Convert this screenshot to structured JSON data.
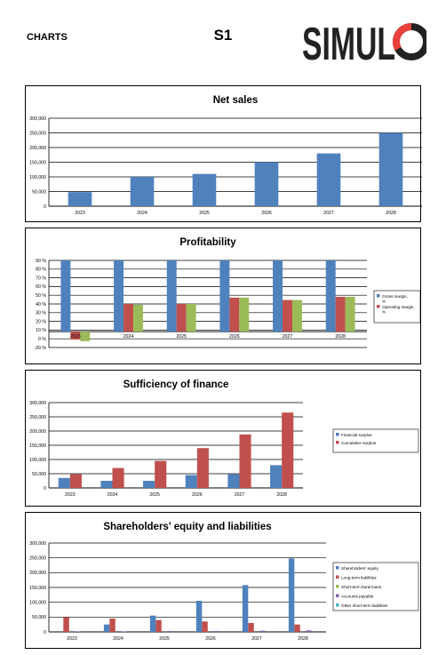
{
  "header": {
    "section_label": "CHARTS",
    "sheet_label": "S1",
    "logo_text": "SIMULO"
  },
  "colors": {
    "blue": "#4f81bd",
    "red": "#c0504d",
    "green": "#9bbb59",
    "purple": "#8064a2",
    "cyan": "#4bacc6",
    "logo_dark": "#222222",
    "logo_red": "#e8403c"
  },
  "chart_data": [
    {
      "type": "bar",
      "title": "Net sales",
      "categories": [
        "2023",
        "2024",
        "2025",
        "2026",
        "2027",
        "2028"
      ],
      "series": [
        {
          "values": [
            48000,
            100000,
            110000,
            150000,
            180000,
            250000
          ]
        }
      ],
      "ylim": [
        0,
        300000
      ],
      "yticks": [
        "0",
        "50,000",
        "100,000",
        "150,000",
        "200,000",
        "250,000",
        "300,000"
      ],
      "grid": true,
      "legend": "none"
    },
    {
      "type": "bar",
      "title": "Profitability",
      "categories": [
        "2023",
        "2024",
        "2025",
        "2026",
        "2027",
        "2028"
      ],
      "series": [
        {
          "name": "Gross margin, %",
          "values": [
            90,
            90,
            90,
            90,
            90,
            90
          ]
        },
        {
          "name": "Operating margin, %",
          "values": [
            -10,
            35,
            35,
            43,
            40,
            44
          ]
        },
        {
          "values": [
            -12,
            34,
            35,
            43,
            40,
            44
          ]
        }
      ],
      "ylim": [
        -20,
        90
      ],
      "yticks": [
        "-20 %",
        "0 %",
        "10 %",
        "20 %",
        "30 %",
        "40 %",
        "50 %",
        "60 %",
        "70 %",
        "80 %",
        "90 %"
      ],
      "grid": true,
      "legend": "right"
    },
    {
      "type": "bar",
      "title": "Sufficiency of finance",
      "categories": [
        "2023",
        "2024",
        "2025",
        "2026",
        "2027",
        "2028"
      ],
      "series": [
        {
          "name": "Financial surplus",
          "values": [
            35000,
            25000,
            25000,
            45000,
            48000,
            80000
          ]
        },
        {
          "name": "Cumulative surplus",
          "values": [
            48000,
            70000,
            95000,
            140000,
            188000,
            265000
          ]
        }
      ],
      "ylim": [
        0,
        300000
      ],
      "yticks": [
        "0",
        "50,000",
        "100,000",
        "150,000",
        "200,000",
        "250,000",
        "300,000"
      ],
      "grid": true,
      "legend": "right"
    },
    {
      "type": "bar",
      "title": "Shareholders' equity and liabilities",
      "categories": [
        "2023",
        "2024",
        "2025",
        "2026",
        "2027",
        "2028"
      ],
      "series": [
        {
          "name": "Shareholders' equity",
          "values": [
            0,
            25000,
            55000,
            105000,
            158000,
            248000
          ]
        },
        {
          "name": "Long-term liabilities",
          "values": [
            50000,
            45000,
            40000,
            35000,
            30000,
            25000
          ]
        },
        {
          "name": "Short-term bank loans",
          "values": [
            0,
            0,
            0,
            0,
            0,
            0
          ]
        },
        {
          "name": "Accounts payable",
          "values": [
            2000,
            2000,
            3000,
            3000,
            4000,
            5000
          ]
        },
        {
          "name": "Other short-term liabilities",
          "values": [
            0,
            0,
            0,
            0,
            0,
            0
          ]
        }
      ],
      "ylim": [
        0,
        300000
      ],
      "yticks": [
        "0",
        "50,000",
        "100,000",
        "150,000",
        "200,000",
        "250,000",
        "300,000"
      ],
      "grid": true,
      "legend": "right"
    }
  ]
}
